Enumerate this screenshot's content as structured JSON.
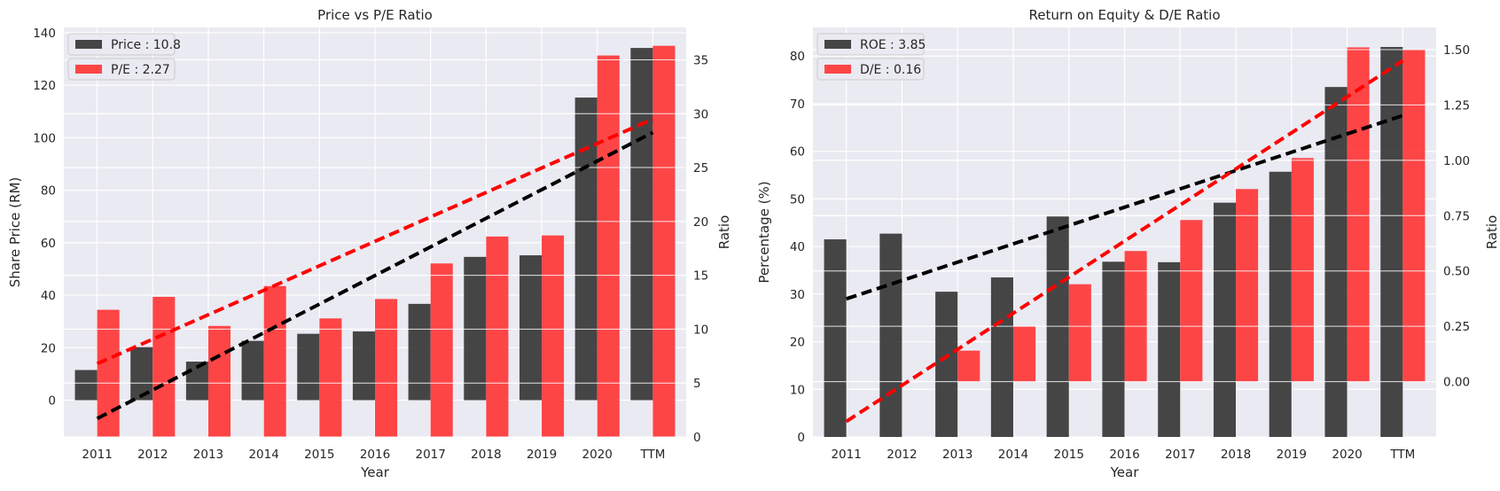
{
  "chart_data": [
    {
      "type": "bar",
      "title": "Price vs P/E Ratio",
      "xlabel": "Year",
      "ylabel": "Share Price (RM)",
      "ylabel_right": "Ratio",
      "categories": [
        "2011",
        "2012",
        "2013",
        "2014",
        "2015",
        "2016",
        "2017",
        "2018",
        "2019",
        "2020",
        "TTM"
      ],
      "ylim": [
        -14,
        142
      ],
      "yticks": [
        0,
        20,
        40,
        60,
        80,
        100,
        120,
        140
      ],
      "ylim_right": [
        0,
        38
      ],
      "yticks_right": [
        0,
        5,
        10,
        15,
        20,
        25,
        30,
        35
      ],
      "grid": true,
      "legend_position": "top-left",
      "series": [
        {
          "name": "Price : 10.8",
          "axis": "left",
          "color": "#333333",
          "values": [
            11.5,
            20.2,
            14.7,
            22.6,
            25.3,
            26.2,
            36.7,
            54.6,
            55.2,
            115.3,
            134.2
          ]
        },
        {
          "name": "P/E : 2.27",
          "axis": "right",
          "color": "#ff3333",
          "values": [
            11.8,
            13.0,
            10.3,
            14.0,
            11.0,
            12.8,
            16.1,
            18.6,
            18.7,
            35.4,
            36.3
          ]
        }
      ],
      "trendlines": [
        {
          "axis": "left",
          "color": "#000000",
          "x_from": "2011",
          "x_to": "TTM",
          "y_from": -7,
          "y_to": 102
        },
        {
          "axis": "right",
          "color": "#ff0000",
          "x_from": "2011",
          "x_to": "TTM",
          "y_from": 6.8,
          "y_to": 29.5
        }
      ]
    },
    {
      "type": "bar",
      "title": "Return on Equity & D/E Ratio",
      "xlabel": "Year",
      "ylabel": "Percentage (%)",
      "ylabel_right": "Ratio",
      "categories": [
        "2011",
        "2012",
        "2013",
        "2014",
        "2015",
        "2016",
        "2017",
        "2018",
        "2019",
        "2020",
        "TTM"
      ],
      "ylim": [
        0,
        86
      ],
      "yticks": [
        0,
        10,
        20,
        30,
        40,
        50,
        60,
        70,
        80
      ],
      "ylim_right": [
        -0.25,
        1.6
      ],
      "yticks_right": [
        0.0,
        0.25,
        0.5,
        0.75,
        1.0,
        1.25,
        1.5
      ],
      "yticks_right_labels": [
        "0.00",
        "0.25",
        "0.50",
        "0.75",
        "1.00",
        "1.25",
        "1.50"
      ],
      "grid": true,
      "legend_position": "top-left",
      "series": [
        {
          "name": "ROE : 3.85",
          "axis": "left",
          "color": "#333333",
          "values": [
            41.5,
            42.7,
            30.5,
            33.5,
            46.3,
            36.8,
            36.7,
            49.2,
            55.7,
            73.5,
            81.9
          ]
        },
        {
          "name": "D/E : 0.16",
          "axis": "right",
          "color": "#ff3333",
          "values": [
            null,
            null,
            0.14,
            0.25,
            0.44,
            0.59,
            0.73,
            0.87,
            1.01,
            1.51,
            1.5
          ]
        }
      ],
      "trendlines": [
        {
          "axis": "left",
          "color": "#000000",
          "x_from": "2011",
          "x_to": "TTM",
          "y_from": 29,
          "y_to": 67.5
        },
        {
          "axis": "right",
          "color": "#ff0000",
          "x_from": "2011",
          "x_to": "TTM",
          "y_from": -0.18,
          "y_to": 1.45
        }
      ]
    }
  ]
}
